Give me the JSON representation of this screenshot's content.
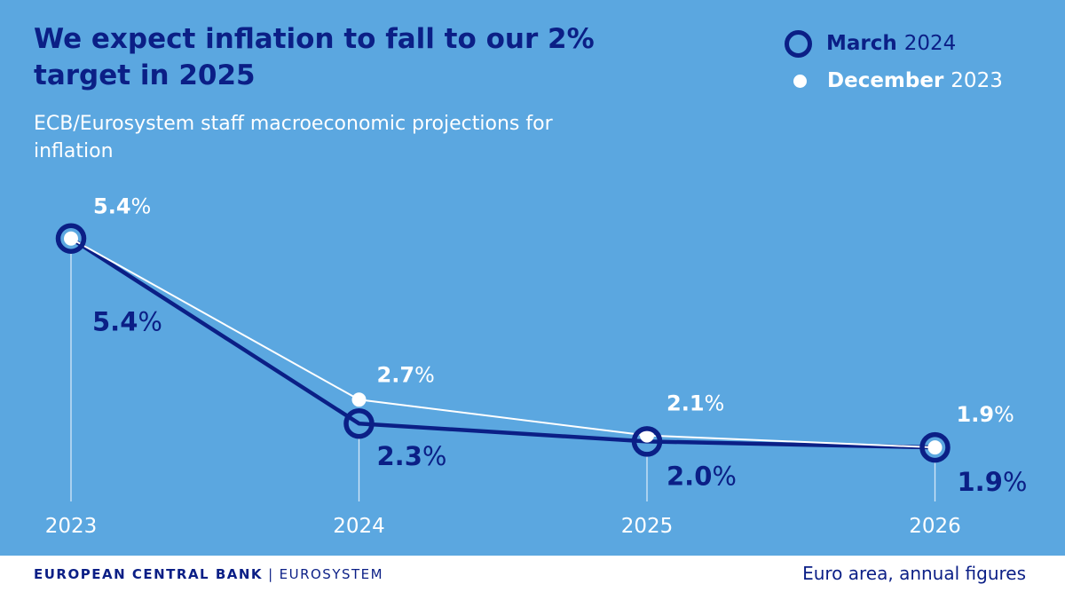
{
  "chart_data": {
    "type": "line",
    "title": "We expect inflation to fall to our 2% target in 2025",
    "subtitle": "ECB/Eurosystem staff macroeconomic projections for inflation",
    "categories": [
      "2023",
      "2024",
      "2025",
      "2026"
    ],
    "unit": "%",
    "ylim": [
      1.5,
      5.5
    ],
    "series": [
      {
        "name": "March 2024",
        "legend_bold": "March",
        "legend_rest": "2024",
        "values": [
          5.4,
          2.3,
          2.0,
          1.9
        ],
        "labels": [
          "5.4",
          "2.3",
          "2.0",
          "1.9"
        ],
        "color": "#0b1f86",
        "style": "ring"
      },
      {
        "name": "December 2023",
        "legend_bold": "December",
        "legend_rest": "2023",
        "values": [
          5.4,
          2.7,
          2.1,
          1.9
        ],
        "labels": [
          "5.4",
          "2.7",
          "2.1",
          "1.9"
        ],
        "color": "#ffffff",
        "style": "dot"
      }
    ],
    "legend_position": "top-right",
    "grid": false
  },
  "colors": {
    "background": "#5ba7e0",
    "navy": "#0b1f86",
    "white": "#ffffff"
  },
  "footer": {
    "institution_bold": "EUROPEAN CENTRAL BANK",
    "separator": "|",
    "institution_rest": "EUROSYSTEM",
    "note": "Euro area, annual figures"
  }
}
